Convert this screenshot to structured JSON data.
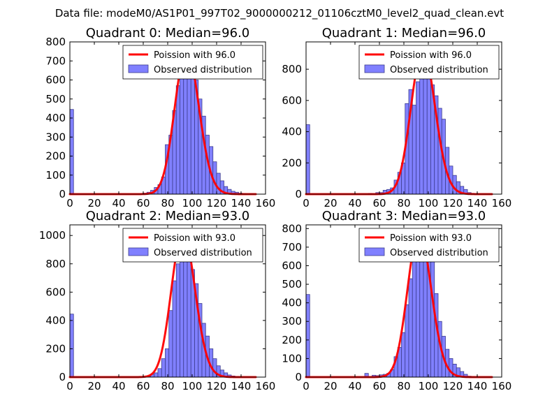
{
  "figure": {
    "suptitle": "Data file: modeM0/AS1P01_997T02_9000000212_01106cztM0_level2_quad_clean.evt",
    "colors": {
      "bar_fill": "#8080ff",
      "bar_edge": "#3c3c8c",
      "poisson_line": "#ff0000",
      "axes": "#000000",
      "background": "#ffffff"
    }
  },
  "chart_data": [
    {
      "type": "bar",
      "title": "Quadrant 0: Median=96.0",
      "xlim": [
        0,
        160
      ],
      "ylim": [
        0,
        800
      ],
      "xticks": [
        "0",
        "20",
        "40",
        "60",
        "80",
        "100",
        "120",
        "140",
        "160"
      ],
      "yticks": [
        "0",
        "100",
        "200",
        "300",
        "400",
        "500",
        "600",
        "700",
        "800"
      ],
      "legend": [
        "Poission with 96.0",
        "Observed distribution"
      ],
      "legend_position": "upper-right",
      "bin_width": 3,
      "bins": [
        [
          0,
          445
        ],
        [
          60,
          5
        ],
        [
          63,
          10
        ],
        [
          66,
          20
        ],
        [
          69,
          35
        ],
        [
          72,
          50
        ],
        [
          75,
          90
        ],
        [
          78,
          260
        ],
        [
          81,
          310
        ],
        [
          84,
          440
        ],
        [
          87,
          570
        ],
        [
          90,
          650
        ],
        [
          93,
          700
        ],
        [
          96,
          710
        ],
        [
          99,
          650
        ],
        [
          102,
          600
        ],
        [
          105,
          500
        ],
        [
          108,
          410
        ],
        [
          111,
          310
        ],
        [
          114,
          250
        ],
        [
          117,
          170
        ],
        [
          120,
          110
        ],
        [
          123,
          70
        ],
        [
          126,
          40
        ],
        [
          129,
          25
        ],
        [
          132,
          15
        ],
        [
          135,
          10
        ],
        [
          138,
          5
        ],
        [
          141,
          3
        ],
        [
          147,
          2
        ]
      ],
      "poisson": {
        "mu": 96.0,
        "peak": 760,
        "x_range": [
          0,
          152
        ]
      }
    },
    {
      "type": "bar",
      "title": "Quadrant 1: Median=96.0",
      "xlim": [
        0,
        160
      ],
      "ylim": [
        0,
        975
      ],
      "xticks": [
        "0",
        "20",
        "40",
        "60",
        "80",
        "100",
        "120",
        "140",
        "160"
      ],
      "yticks": [
        "0",
        "200",
        "400",
        "600",
        "800"
      ],
      "legend": [
        "Poission with 96.0",
        "Observed distribution"
      ],
      "legend_position": "upper-right",
      "bin_width": 3,
      "bins": [
        [
          0,
          445
        ],
        [
          51,
          5
        ],
        [
          57,
          10
        ],
        [
          60,
          10
        ],
        [
          63,
          25
        ],
        [
          66,
          30
        ],
        [
          69,
          40
        ],
        [
          72,
          90
        ],
        [
          75,
          140
        ],
        [
          78,
          200
        ],
        [
          81,
          580
        ],
        [
          84,
          670
        ],
        [
          87,
          570
        ],
        [
          90,
          720
        ],
        [
          93,
          870
        ],
        [
          96,
          880
        ],
        [
          99,
          820
        ],
        [
          102,
          700
        ],
        [
          105,
          630
        ],
        [
          108,
          550
        ],
        [
          111,
          480
        ],
        [
          114,
          300
        ],
        [
          117,
          180
        ],
        [
          120,
          120
        ],
        [
          123,
          80
        ],
        [
          126,
          50
        ],
        [
          129,
          30
        ],
        [
          132,
          10
        ],
        [
          135,
          5
        ],
        [
          138,
          3
        ]
      ],
      "poisson": {
        "mu": 96.0,
        "peak": 925,
        "x_range": [
          0,
          152
        ]
      }
    },
    {
      "type": "bar",
      "title": "Quadrant 2: Median=93.0",
      "xlim": [
        0,
        160
      ],
      "ylim": [
        0,
        1075
      ],
      "xticks": [
        "0",
        "20",
        "40",
        "60",
        "80",
        "100",
        "120",
        "140",
        "160"
      ],
      "yticks": [
        "0",
        "200",
        "400",
        "600",
        "800",
        "1000"
      ],
      "legend": [
        "Poission with 93.0",
        "Observed distribution"
      ],
      "legend_position": "upper-right",
      "bin_width": 3,
      "bins": [
        [
          0,
          445
        ],
        [
          63,
          5
        ],
        [
          66,
          20
        ],
        [
          69,
          30
        ],
        [
          72,
          60
        ],
        [
          75,
          130
        ],
        [
          78,
          200
        ],
        [
          81,
          470
        ],
        [
          84,
          680
        ],
        [
          87,
          800
        ],
        [
          90,
          930
        ],
        [
          93,
          1000
        ],
        [
          96,
          880
        ],
        [
          99,
          760
        ],
        [
          102,
          660
        ],
        [
          105,
          520
        ],
        [
          108,
          380
        ],
        [
          111,
          290
        ],
        [
          114,
          200
        ],
        [
          117,
          130
        ],
        [
          120,
          80
        ],
        [
          123,
          50
        ],
        [
          126,
          30
        ],
        [
          129,
          15
        ],
        [
          132,
          8
        ],
        [
          135,
          5
        ],
        [
          138,
          2
        ]
      ],
      "poisson": {
        "mu": 93.0,
        "peak": 1025,
        "x_range": [
          0,
          152
        ]
      }
    },
    {
      "type": "bar",
      "title": "Quadrant 3: Median=93.0",
      "xlim": [
        0,
        160
      ],
      "ylim": [
        0,
        820
      ],
      "xticks": [
        "0",
        "20",
        "40",
        "60",
        "80",
        "100",
        "120",
        "140",
        "160"
      ],
      "yticks": [
        "0",
        "100",
        "200",
        "300",
        "400",
        "500",
        "600",
        "700",
        "800"
      ],
      "legend": [
        "Poission with 93.0",
        "Observed distribution"
      ],
      "legend_position": "upper-right",
      "bin_width": 3,
      "bins": [
        [
          0,
          445
        ],
        [
          48,
          20
        ],
        [
          54,
          10
        ],
        [
          57,
          8
        ],
        [
          60,
          12
        ],
        [
          63,
          15
        ],
        [
          66,
          20
        ],
        [
          69,
          40
        ],
        [
          72,
          110
        ],
        [
          75,
          160
        ],
        [
          78,
          240
        ],
        [
          81,
          390
        ],
        [
          84,
          530
        ],
        [
          87,
          650
        ],
        [
          90,
          710
        ],
        [
          93,
          740
        ],
        [
          96,
          690
        ],
        [
          99,
          625
        ],
        [
          102,
          625
        ],
        [
          105,
          450
        ],
        [
          108,
          300
        ],
        [
          111,
          220
        ],
        [
          114,
          150
        ],
        [
          117,
          100
        ],
        [
          120,
          70
        ],
        [
          123,
          50
        ],
        [
          126,
          30
        ],
        [
          129,
          15
        ],
        [
          132,
          5
        ],
        [
          135,
          2
        ]
      ],
      "poisson": {
        "mu": 93.0,
        "peak": 785,
        "x_range": [
          0,
          152
        ]
      }
    }
  ]
}
